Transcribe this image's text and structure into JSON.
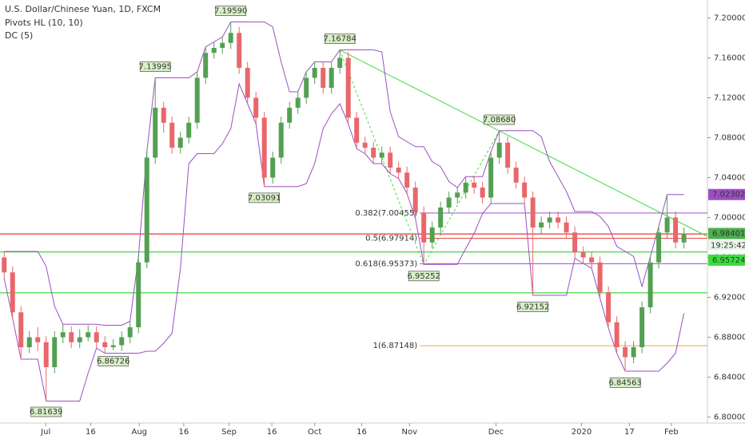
{
  "chart_data": {
    "type": "candlestick",
    "title": "U.S. Dollar/Chinese Yuan, 1D, FXCM",
    "indicators": [
      "Pivots HL (10, 10)",
      "DC (5)"
    ],
    "up_color": "#53a053",
    "down_color": "#e8676b",
    "dc_color": "#9c4fc4",
    "candles": [
      [
        6.96,
        6.966,
        6.939,
        6.945
      ],
      [
        6.945,
        6.951,
        6.899,
        6.905
      ],
      [
        6.905,
        6.911,
        6.858,
        6.87
      ],
      [
        6.87,
        6.886,
        6.864,
        6.88
      ],
      [
        6.88,
        6.89,
        6.866,
        6.875
      ],
      [
        6.875,
        6.881,
        6.816,
        6.85
      ],
      [
        6.85,
        6.886,
        6.844,
        6.88
      ],
      [
        6.88,
        6.893,
        6.874,
        6.885
      ],
      [
        6.885,
        6.891,
        6.869,
        6.875
      ],
      [
        6.875,
        6.888,
        6.869,
        6.88
      ],
      [
        6.88,
        6.892,
        6.876,
        6.885
      ],
      [
        6.885,
        6.891,
        6.869,
        6.875
      ],
      [
        6.875,
        6.881,
        6.864,
        6.87
      ],
      [
        6.87,
        6.878,
        6.867,
        6.872
      ],
      [
        6.872,
        6.886,
        6.866,
        6.88
      ],
      [
        6.88,
        6.896,
        6.874,
        6.89
      ],
      [
        6.89,
        6.961,
        6.884,
        6.955
      ],
      [
        6.955,
        7.066,
        6.949,
        7.06
      ],
      [
        7.06,
        7.14,
        7.054,
        7.11
      ],
      [
        7.11,
        7.116,
        7.085,
        7.095
      ],
      [
        7.095,
        7.101,
        7.064,
        7.07
      ],
      [
        7.07,
        7.086,
        7.064,
        7.08
      ],
      [
        7.08,
        7.101,
        7.074,
        7.095
      ],
      [
        7.095,
        7.146,
        7.089,
        7.14
      ],
      [
        7.14,
        7.171,
        7.134,
        7.165
      ],
      [
        7.165,
        7.176,
        7.159,
        7.17
      ],
      [
        7.17,
        7.181,
        7.164,
        7.175
      ],
      [
        7.175,
        7.196,
        7.169,
        7.185
      ],
      [
        7.185,
        7.191,
        7.144,
        7.15
      ],
      [
        7.15,
        7.156,
        7.114,
        7.12
      ],
      [
        7.12,
        7.126,
        7.094,
        7.1
      ],
      [
        7.1,
        7.106,
        7.031,
        7.04
      ],
      [
        7.04,
        7.066,
        7.034,
        7.06
      ],
      [
        7.06,
        7.101,
        7.054,
        7.095
      ],
      [
        7.095,
        7.116,
        7.089,
        7.11
      ],
      [
        7.11,
        7.126,
        7.104,
        7.12
      ],
      [
        7.12,
        7.146,
        7.114,
        7.14
      ],
      [
        7.14,
        7.156,
        7.134,
        7.15
      ],
      [
        7.15,
        7.156,
        7.124,
        7.13
      ],
      [
        7.13,
        7.156,
        7.124,
        7.15
      ],
      [
        7.15,
        7.168,
        7.144,
        7.16
      ],
      [
        7.16,
        7.166,
        7.094,
        7.1
      ],
      [
        7.1,
        7.106,
        7.069,
        7.075
      ],
      [
        7.075,
        7.081,
        7.064,
        7.07
      ],
      [
        7.07,
        7.076,
        7.054,
        7.06
      ],
      [
        7.06,
        7.071,
        7.054,
        7.065
      ],
      [
        7.065,
        7.071,
        7.044,
        7.05
      ],
      [
        7.05,
        7.056,
        7.039,
        7.045
      ],
      [
        7.045,
        7.051,
        7.024,
        7.03
      ],
      [
        7.03,
        7.036,
        6.999,
        7.005
      ],
      [
        7.005,
        7.011,
        6.953,
        6.975
      ],
      [
        6.975,
        6.996,
        6.969,
        6.99
      ],
      [
        6.99,
        7.016,
        6.984,
        7.01
      ],
      [
        7.01,
        7.026,
        7.004,
        7.02
      ],
      [
        7.02,
        7.03,
        7.014,
        7.025
      ],
      [
        7.025,
        7.041,
        7.019,
        7.035
      ],
      [
        7.035,
        7.041,
        7.024,
        7.03
      ],
      [
        7.03,
        7.036,
        7.014,
        7.02
      ],
      [
        7.02,
        7.066,
        7.014,
        7.06
      ],
      [
        7.06,
        7.087,
        7.054,
        7.075
      ],
      [
        7.075,
        7.081,
        7.044,
        7.05
      ],
      [
        7.05,
        7.056,
        7.029,
        7.035
      ],
      [
        7.035,
        7.041,
        7.014,
        7.02
      ],
      [
        7.02,
        7.026,
        6.922,
        6.99
      ],
      [
        6.99,
        7.001,
        6.984,
        6.995
      ],
      [
        6.995,
        7.006,
        6.989,
        7.0
      ],
      [
        7.0,
        7.006,
        6.989,
        6.995
      ],
      [
        6.995,
        7.001,
        6.979,
        6.985
      ],
      [
        6.985,
        6.991,
        6.959,
        6.965
      ],
      [
        6.965,
        6.971,
        6.954,
        6.96
      ],
      [
        6.96,
        6.966,
        6.949,
        6.955
      ],
      [
        6.955,
        6.961,
        6.919,
        6.925
      ],
      [
        6.925,
        6.931,
        6.889,
        6.895
      ],
      [
        6.895,
        6.901,
        6.864,
        6.87
      ],
      [
        6.87,
        6.876,
        6.846,
        6.86
      ],
      [
        6.86,
        6.876,
        6.854,
        6.87
      ],
      [
        6.87,
        6.916,
        6.864,
        6.91
      ],
      [
        6.91,
        6.961,
        6.904,
        6.955
      ],
      [
        6.955,
        6.991,
        6.949,
        6.985
      ],
      [
        6.985,
        7.023,
        6.979,
        7.0
      ],
      [
        7.0,
        7.006,
        6.969,
        6.975
      ],
      [
        6.975,
        6.99,
        6.969,
        6.984
      ]
    ],
    "pivots": [
      {
        "value": 7.1959,
        "label": "7.19590"
      },
      {
        "value": 7.13995,
        "label": "7.13995"
      },
      {
        "value": 7.16784,
        "label": "7.16784"
      },
      {
        "value": 7.0868,
        "label": "7.08680"
      },
      {
        "value": 7.03091,
        "label": "7.03091"
      },
      {
        "value": 6.95252,
        "label": "6.95252"
      },
      {
        "value": 6.92152,
        "label": "6.92152"
      },
      {
        "value": 6.86726,
        "label": "6.86726"
      },
      {
        "value": 6.81639,
        "label": "6.81639"
      },
      {
        "value": 6.84563,
        "label": "6.84563"
      }
    ],
    "fib_levels": [
      {
        "value": 7.00455,
        "label": "0.382(7.00455)",
        "color": "#9c4fc4"
      },
      {
        "value": 6.97914,
        "label": "0.5(6.97914)",
        "color": "#e53935"
      },
      {
        "value": 6.95373,
        "label": "0.618(6.95373)",
        "color": "#9c4fc4"
      },
      {
        "value": 6.87148,
        "label": "1(6.87148)",
        "color": "#f0a050"
      }
    ],
    "hlines": [
      {
        "value": 6.9835,
        "color": "#e53935"
      },
      {
        "value": 6.9655,
        "color": "#3ddc3d"
      },
      {
        "value": 6.9245,
        "color": "#3ddc3d"
      }
    ],
    "trendline": {
      "from": 7.16784,
      "to": 6.981,
      "color": "#3ddc3d"
    },
    "price_tags": [
      {
        "value": 7.02302,
        "label": "7.02302",
        "color": "#9c4fc4"
      },
      {
        "value": 6.98401,
        "label": "6.98401",
        "color": "#4caf50"
      },
      {
        "value": 6.95724,
        "label": "6.95724",
        "color": "#3ddc3d"
      }
    ],
    "countdown": "19:25:42",
    "xlim": [
      -0.5,
      83.8
    ],
    "xticks": [
      {
        "value": 4.95,
        "label": "Jul"
      },
      {
        "value": 10.3,
        "label": "16"
      },
      {
        "value": 16.1,
        "label": "Aug"
      },
      {
        "value": 21.4,
        "label": "16"
      },
      {
        "value": 26.8,
        "label": "Sep"
      },
      {
        "value": 31.9,
        "label": "16"
      },
      {
        "value": 37,
        "label": "Oct"
      },
      {
        "value": 42.6,
        "label": "16"
      },
      {
        "value": 48.3,
        "label": "Nov"
      },
      {
        "value": 58.6,
        "label": "Dec"
      },
      {
        "value": 68.8,
        "label": "2020"
      },
      {
        "value": 74.5,
        "label": "17"
      },
      {
        "value": 79.5,
        "label": "Feb"
      }
    ],
    "ylim": [
      6.794,
      7.218
    ],
    "yticks": [
      {
        "value": 6.8,
        "label": "6.80000"
      },
      {
        "value": 6.84,
        "label": "6.84000"
      },
      {
        "value": 6.88,
        "label": "6.88000"
      },
      {
        "value": 6.92,
        "label": "6.92000"
      },
      {
        "value": 6.96,
        "label": "6.96000"
      },
      {
        "value": 7.0,
        "label": "7.00000"
      },
      {
        "value": 7.04,
        "label": "7.04000"
      },
      {
        "value": 7.08,
        "label": "7.08000"
      },
      {
        "value": 7.12,
        "label": "7.12000"
      },
      {
        "value": 7.16,
        "label": "7.16000"
      },
      {
        "value": 7.2,
        "label": "7.20000"
      }
    ]
  }
}
